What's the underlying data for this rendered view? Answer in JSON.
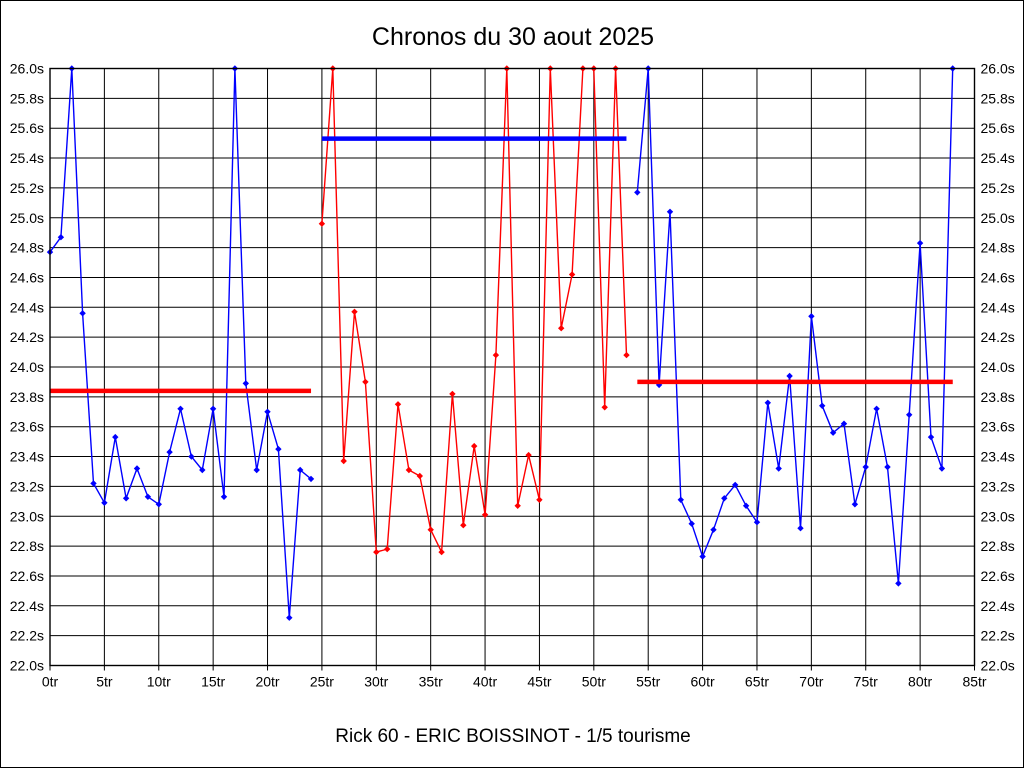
{
  "chart_data": {
    "type": "line",
    "title": "Chronos du 30 aout 2025",
    "footer": "Rick 60 - ERIC BOISSINOT - 1/5 tourisme",
    "x_axis": {
      "min": 0,
      "max": 85,
      "tick_step": 5,
      "unit": "tr"
    },
    "y_axis": {
      "min": 22.0,
      "max": 26.0,
      "tick_step": 0.2,
      "unit": "s",
      "decimals": 1
    },
    "grid": true,
    "colors": {
      "blue": "#0000ff",
      "red": "#ff0000",
      "grid": "#000000",
      "background": "#ffffff"
    },
    "series": [
      {
        "name": "stint-1-blue",
        "color": "#0000ff",
        "start_lap": 0,
        "values": [
          24.77,
          24.87,
          26.0,
          24.36,
          23.22,
          23.09,
          23.53,
          23.12,
          23.32,
          23.13,
          23.08,
          23.43,
          23.72,
          23.4,
          23.31,
          23.72,
          23.13,
          26.0,
          23.89,
          23.31,
          23.7,
          23.45,
          22.32,
          23.31,
          23.25
        ]
      },
      {
        "name": "stint-2-red",
        "color": "#ff0000",
        "start_lap": 25,
        "values": [
          24.96,
          26.0,
          23.37,
          24.37,
          23.9,
          22.76,
          22.78,
          23.75,
          23.31,
          23.27,
          22.91,
          22.76,
          23.82,
          22.94,
          23.47,
          23.01,
          24.08,
          26.0,
          23.07,
          23.41,
          23.11,
          26.0,
          24.26,
          24.62,
          26.0,
          26.0,
          23.73,
          26.0,
          24.08
        ]
      },
      {
        "name": "stint-3-blue",
        "color": "#0000ff",
        "start_lap": 54,
        "values": [
          25.17,
          26.0,
          23.88,
          25.04,
          23.11,
          22.95,
          22.73,
          22.91,
          23.12,
          23.21,
          23.07,
          22.96,
          23.76,
          23.32,
          23.94,
          22.92,
          24.34,
          23.74,
          23.56,
          23.62,
          23.08,
          23.33,
          23.72,
          23.33,
          22.55,
          23.68,
          24.83,
          23.53,
          23.32,
          26.0
        ]
      }
    ],
    "average_lines": [
      {
        "name": "avg-stint-1",
        "value": 23.84,
        "color": "#ff0000",
        "from_lap": 0,
        "to_lap": 24
      },
      {
        "name": "avg-stint-2",
        "value": 25.53,
        "color": "#0000ff",
        "from_lap": 25,
        "to_lap": 53
      },
      {
        "name": "avg-stint-3",
        "value": 23.9,
        "color": "#ff0000",
        "from_lap": 54,
        "to_lap": 83
      }
    ]
  }
}
